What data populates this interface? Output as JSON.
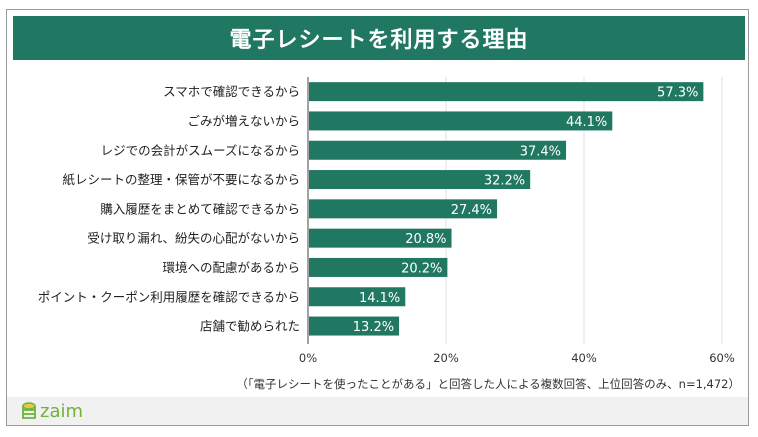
{
  "title": "電子レシートを利用する理由",
  "note": "（「電子レシートを使ったことがある」と回答した人による複数回答、上位回答のみ、n=1,472）",
  "brand": "zaim",
  "colors": {
    "bar": "#217862",
    "title_bg": "#217862",
    "logo": "#6fb33a"
  },
  "chart_data": {
    "type": "bar",
    "orientation": "horizontal",
    "title": "電子レシートを利用する理由",
    "categories": [
      "スマホで確認できるから",
      "ごみが増えないから",
      "レジでの会計がスムーズになるから",
      "紙レシートの整理・保管が不要になるから",
      "購入履歴をまとめて確認できるから",
      "受け取り漏れ、紛失の心配がないから",
      "環境への配慮があるから",
      "ポイント・クーポン利用履歴を確認できるから",
      "店舗で勧められた"
    ],
    "values": [
      57.3,
      44.1,
      37.4,
      32.2,
      27.4,
      20.8,
      20.2,
      14.1,
      13.2
    ],
    "labels": [
      "57.3%",
      "44.1%",
      "37.4%",
      "32.2%",
      "27.4%",
      "20.8%",
      "20.2%",
      "14.1%",
      "13.2%"
    ],
    "xlim": [
      0,
      60
    ],
    "xticks": [
      "0%",
      "20%",
      "40%",
      "60%"
    ],
    "grid": true
  }
}
